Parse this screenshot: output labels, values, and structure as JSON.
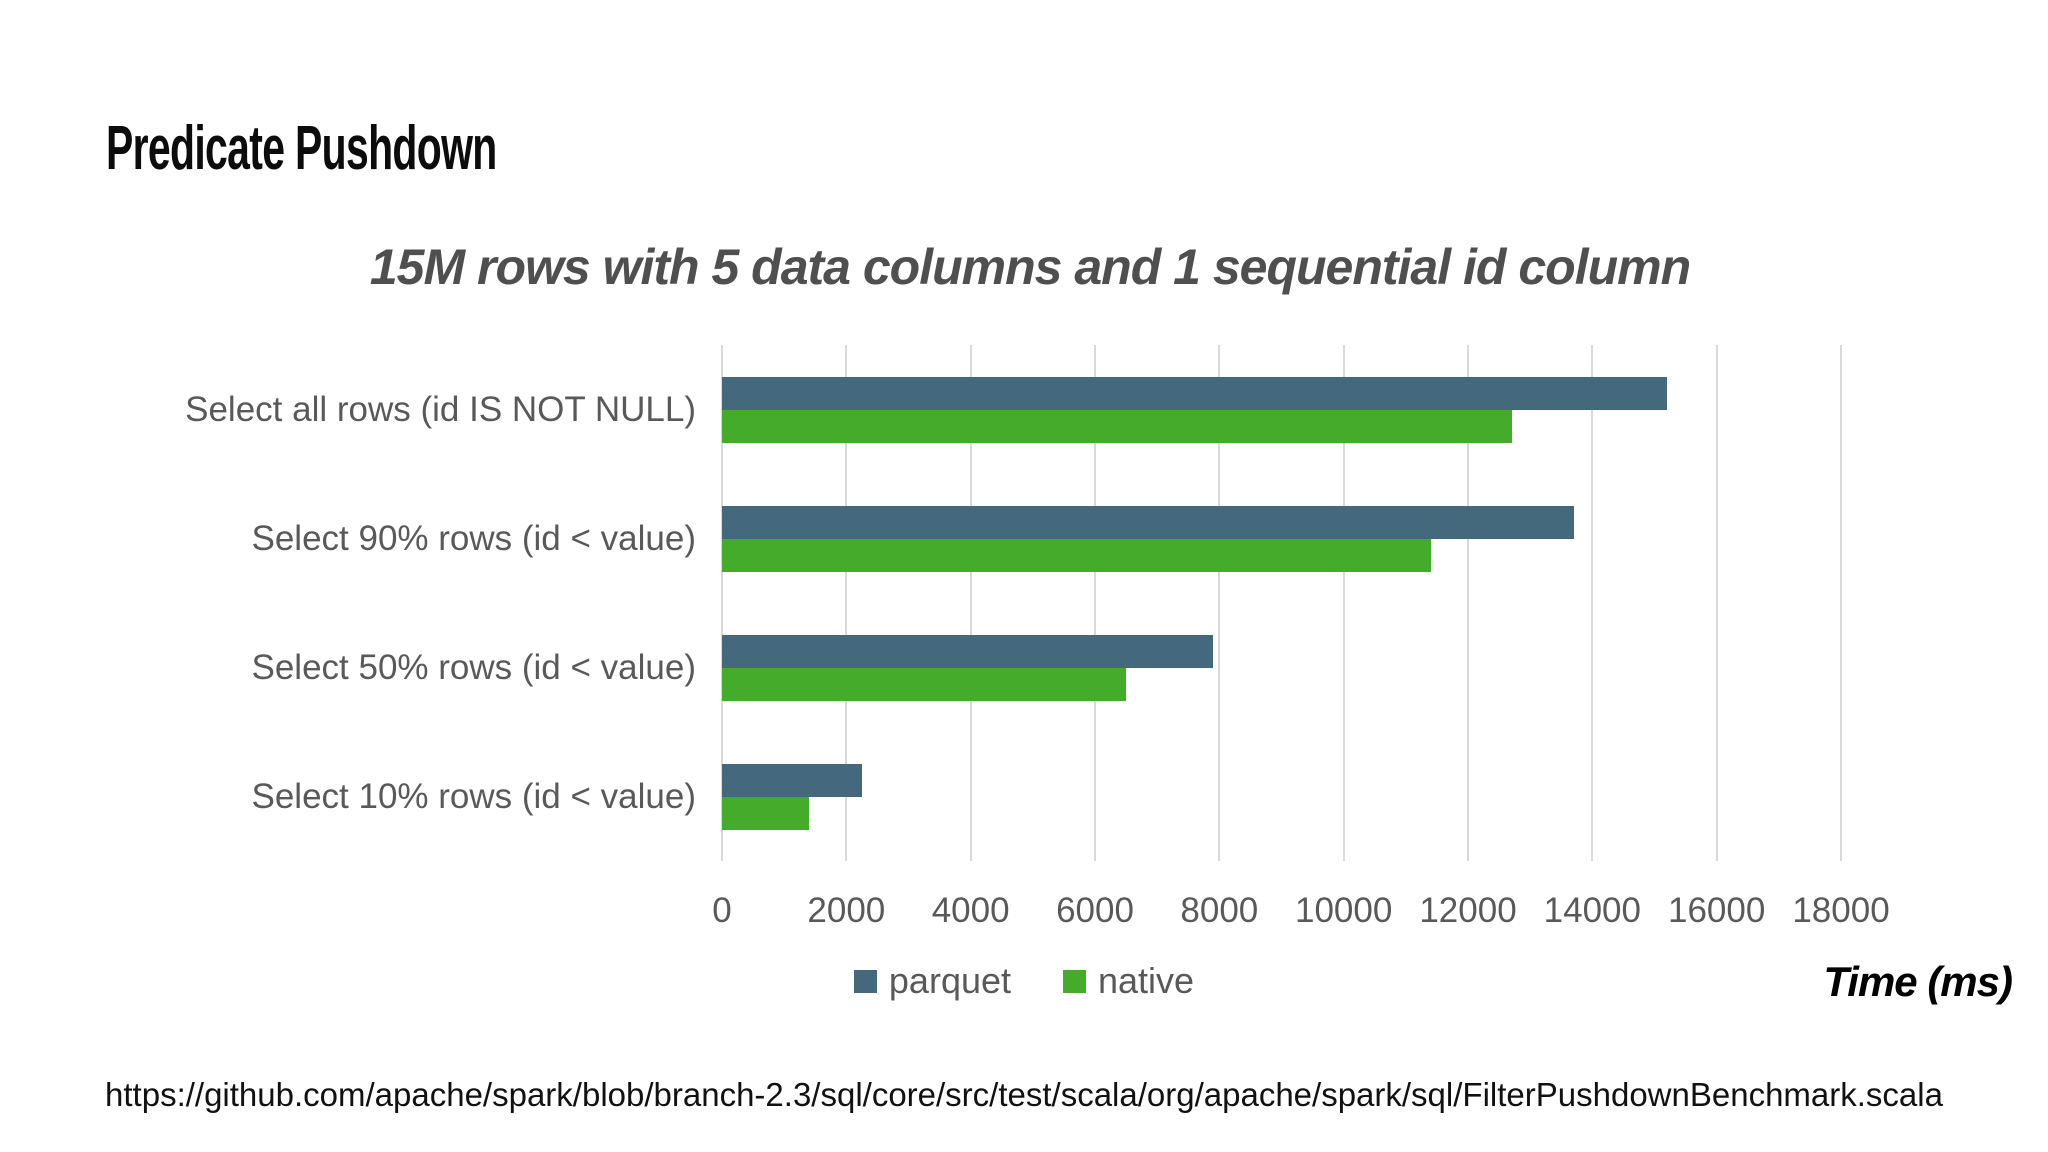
{
  "slide": {
    "title": "Predicate Pushdown",
    "footer_url": "https://github.com/apache/spark/blob/branch-2.3/sql/core/src/test/scala/org/apache/spark/sql/FilterPushdownBenchmark.scala"
  },
  "chart_data": {
    "type": "bar",
    "orientation": "horizontal",
    "title": "15M rows with 5 data columns and 1 sequential id column",
    "categories": [
      "Select all rows (id IS NOT NULL)",
      "Select 90% rows (id < value)",
      "Select 50% rows (id < value)",
      "Select 10% rows (id < value)"
    ],
    "series": [
      {
        "name": "parquet",
        "color": "#44697c",
        "values": [
          15200,
          13700,
          7900,
          2250
        ]
      },
      {
        "name": "native",
        "color": "#45ab2b",
        "values": [
          12700,
          11400,
          6500,
          1400
        ]
      }
    ],
    "xlabel": "Time (ms)",
    "x_ticks": [
      0,
      2000,
      4000,
      6000,
      8000,
      10000,
      12000,
      14000,
      16000,
      18000
    ],
    "xlim": [
      0,
      18000
    ],
    "grid": "vertical",
    "gridline_color": "#d9d9d9",
    "legend_position": "bottom-center",
    "text_color": "#595959"
  }
}
